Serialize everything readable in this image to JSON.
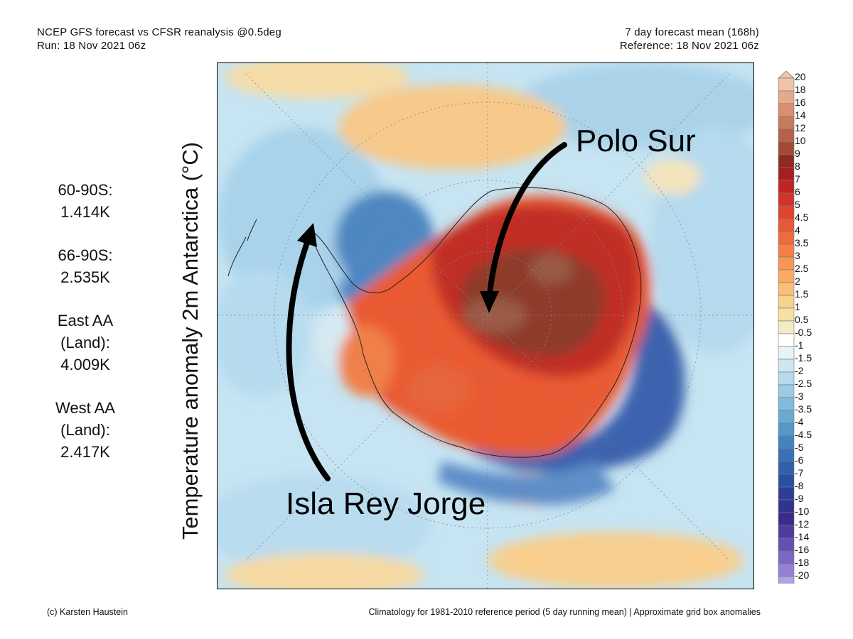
{
  "header": {
    "left_line1": "NCEP GFS forecast vs CFSR reanalysis @0.5deg",
    "left_line2": "Run: 18 Nov 2021 06z",
    "right_line1": "7 day forecast mean (168h)",
    "right_line2": "Reference: 18 Nov 2021 06z"
  },
  "stats": [
    {
      "label": "60-90S:",
      "value": "1.414K"
    },
    {
      "label": "66-90S:",
      "value": "2.535K"
    },
    {
      "label": "East AA",
      "label2": "(Land):",
      "value": "4.009K"
    },
    {
      "label": "West AA",
      "label2": "(Land):",
      "value": "2.417K"
    }
  ],
  "map": {
    "title": "Temperature anomaly 2m Antarctica (°C)",
    "annotations": {
      "south_pole": "Polo Sur",
      "king_george_island": "Isla Rey Jorge"
    }
  },
  "colorbar": {
    "labels": [
      "20",
      "18",
      "16",
      "14",
      "12",
      "10",
      "9",
      "8",
      "7",
      "6",
      "5",
      "4.5",
      "4",
      "3.5",
      "3",
      "2.5",
      "2",
      "1.5",
      "1",
      "0.5",
      "-0.5",
      "-1",
      "-1.5",
      "-2",
      "-2.5",
      "-3",
      "-3.5",
      "-4",
      "-4.5",
      "-5",
      "-6",
      "-7",
      "-8",
      "-9",
      "-10",
      "-12",
      "-14",
      "-16",
      "-18",
      "-20"
    ],
    "colors": [
      "#efc3a8",
      "#e6a98a",
      "#d98f70",
      "#c87a5c",
      "#b66248",
      "#a24a36",
      "#8e2a22",
      "#a61e22",
      "#be2623",
      "#d2332a",
      "#e0452f",
      "#e95638",
      "#f06a3f",
      "#f48048",
      "#f79655",
      "#f9ab63",
      "#f9bf76",
      "#f8d18b",
      "#f5e1a5",
      "#f4eac6",
      "#ffffff",
      "#e7f2f9",
      "#cfe6f2",
      "#b6d9ec",
      "#9ccbe4",
      "#82bbdc",
      "#6aa9d3",
      "#5697ca",
      "#4583bf",
      "#3971b6",
      "#3060ac",
      "#2a4fa0",
      "#2c3f96",
      "#33328e",
      "#3d2a8c",
      "#4f3a9e",
      "#6450b2",
      "#7b67c4",
      "#9581d4",
      "#b3a2e3"
    ]
  },
  "footer": {
    "left": "(c) Karsten Haustein",
    "right": "Climatology for 1981-2010 reference period (5 day running mean) | Approximate grid box anomalies"
  }
}
